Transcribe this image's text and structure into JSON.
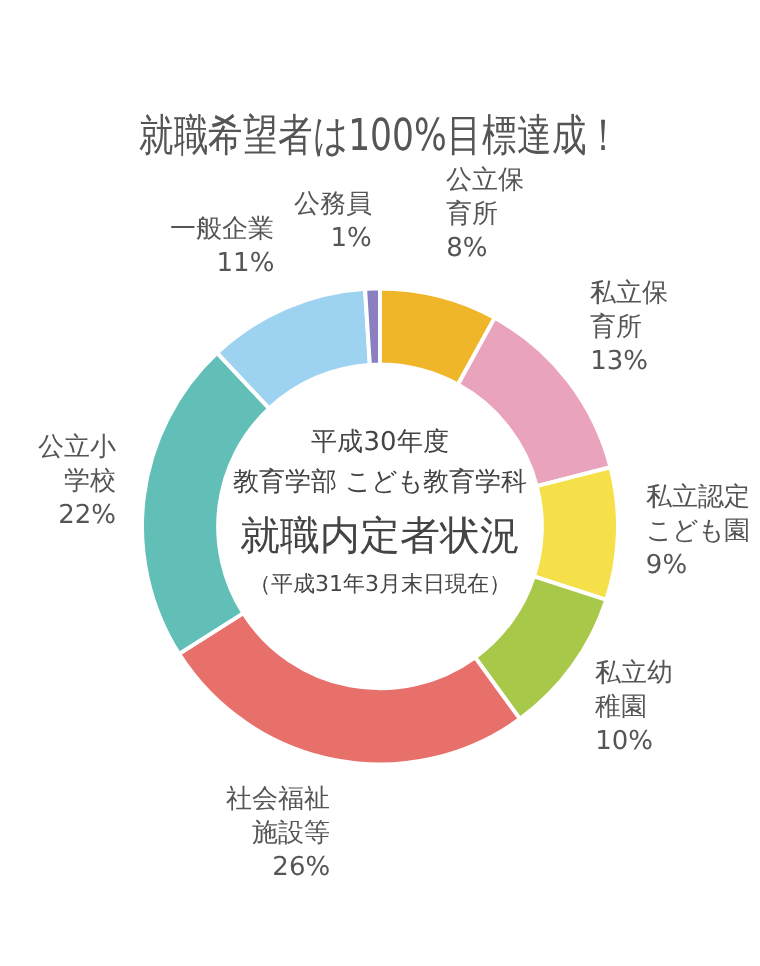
{
  "chart_data": {
    "type": "donut",
    "title": "就職希望者は100%目標達成！",
    "categories": [
      "公立保育所",
      "私立保育所",
      "私立認定こども園",
      "私立幼稚園",
      "社会福祉施設等",
      "公立小学校",
      "一般企業",
      "公務員"
    ],
    "values": [
      8,
      13,
      9,
      10,
      26,
      22,
      11,
      1
    ],
    "value_labels": [
      "8%",
      "13%",
      "9%",
      "10%",
      "26%",
      "22%",
      "11%",
      "1%"
    ],
    "colors": [
      "#f0b62a",
      "#eaa3bd",
      "#f5e04a",
      "#a8c84a",
      "#e8706a",
      "#62bfb8",
      "#9dd3f0",
      "#8a7fc0"
    ],
    "annotations": [
      "平成30年度",
      "教育学部 こども教育学科",
      "就職内定者状況",
      "（平成31年3月末日現在）"
    ],
    "legend": false
  }
}
